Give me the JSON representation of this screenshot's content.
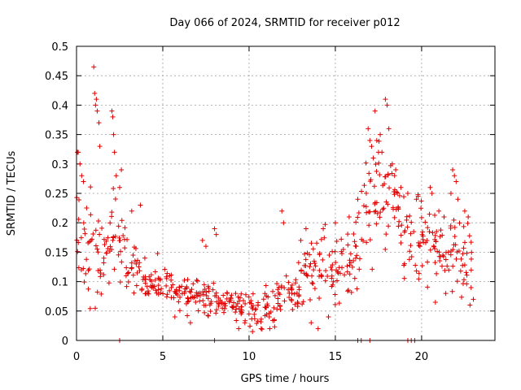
{
  "chart_data": {
    "type": "scatter",
    "title": "Day 066 of 2024, SRMTID for receiver p012",
    "xlabel": "GPS time / hours",
    "ylabel": "SRMTID / TECUs",
    "xlim": [
      0,
      24.25
    ],
    "ylim": [
      0,
      0.5
    ],
    "xticks": [
      0,
      5,
      10,
      15,
      20
    ],
    "xtick_labels": [
      "0",
      "5",
      "10",
      "15",
      "20"
    ],
    "yticks": [
      0,
      0.05,
      0.1,
      0.15,
      0.2,
      0.25,
      0.3,
      0.35,
      0.4,
      0.45,
      0.5
    ],
    "ytick_labels": [
      "0",
      "0.05",
      "0.1",
      "0.15",
      "0.2",
      "0.25",
      "0.3",
      "0.35",
      "0.4",
      "0.45",
      "0.5"
    ],
    "grid": true,
    "marker": "+",
    "series_color": "#e00000",
    "points_per_segment": 14,
    "series": [
      {
        "name": "SRMTID p012",
        "profile": [
          [
            0.0,
            0.17,
            0.05
          ],
          [
            0.5,
            0.17,
            0.05
          ],
          [
            1.0,
            0.18,
            0.06
          ],
          [
            1.5,
            0.14,
            0.04
          ],
          [
            2.0,
            0.16,
            0.05
          ],
          [
            2.5,
            0.15,
            0.05
          ],
          [
            3.0,
            0.14,
            0.04
          ],
          [
            3.5,
            0.11,
            0.03
          ],
          [
            4.0,
            0.1,
            0.025
          ],
          [
            4.5,
            0.1,
            0.025
          ],
          [
            5.0,
            0.09,
            0.025
          ],
          [
            5.5,
            0.09,
            0.025
          ],
          [
            6.0,
            0.08,
            0.02
          ],
          [
            6.5,
            0.08,
            0.02
          ],
          [
            7.0,
            0.08,
            0.02
          ],
          [
            7.5,
            0.075,
            0.02
          ],
          [
            8.0,
            0.07,
            0.02
          ],
          [
            8.5,
            0.065,
            0.02
          ],
          [
            9.0,
            0.06,
            0.018
          ],
          [
            9.5,
            0.06,
            0.018
          ],
          [
            10.0,
            0.055,
            0.018
          ],
          [
            10.5,
            0.055,
            0.018
          ],
          [
            11.0,
            0.055,
            0.02
          ],
          [
            11.5,
            0.06,
            0.02
          ],
          [
            12.0,
            0.07,
            0.02
          ],
          [
            12.5,
            0.085,
            0.025
          ],
          [
            13.0,
            0.1,
            0.03
          ],
          [
            13.5,
            0.13,
            0.035
          ],
          [
            14.0,
            0.13,
            0.04
          ],
          [
            14.5,
            0.12,
            0.04
          ],
          [
            15.0,
            0.12,
            0.04
          ],
          [
            15.5,
            0.13,
            0.04
          ],
          [
            16.0,
            0.15,
            0.04
          ],
          [
            16.5,
            0.18,
            0.05
          ],
          [
            17.0,
            0.23,
            0.06
          ],
          [
            17.5,
            0.25,
            0.06
          ],
          [
            18.0,
            0.24,
            0.06
          ],
          [
            18.5,
            0.22,
            0.06
          ],
          [
            19.0,
            0.18,
            0.05
          ],
          [
            19.5,
            0.18,
            0.05
          ],
          [
            20.0,
            0.17,
            0.05
          ],
          [
            20.5,
            0.16,
            0.04
          ],
          [
            21.0,
            0.15,
            0.04
          ],
          [
            21.5,
            0.15,
            0.04
          ],
          [
            22.0,
            0.17,
            0.05
          ],
          [
            22.5,
            0.15,
            0.04
          ],
          [
            22.9,
            0.13,
            0.04
          ]
        ],
        "extra_points": [
          [
            0.05,
            0.32
          ],
          [
            0.1,
            0.32
          ],
          [
            0.2,
            0.3
          ],
          [
            0.3,
            0.28
          ],
          [
            0.4,
            0.27
          ],
          [
            1.0,
            0.465
          ],
          [
            1.05,
            0.42
          ],
          [
            1.1,
            0.4
          ],
          [
            1.15,
            0.41
          ],
          [
            1.2,
            0.39
          ],
          [
            1.3,
            0.37
          ],
          [
            1.35,
            0.33
          ],
          [
            2.05,
            0.39
          ],
          [
            2.1,
            0.38
          ],
          [
            2.15,
            0.35
          ],
          [
            2.2,
            0.32
          ],
          [
            2.3,
            0.28
          ],
          [
            2.6,
            0.29
          ],
          [
            2.5,
            0.26
          ],
          [
            3.2,
            0.22
          ],
          [
            3.7,
            0.23
          ],
          [
            7.3,
            0.17
          ],
          [
            7.5,
            0.16
          ],
          [
            8.0,
            0.19
          ],
          [
            8.1,
            0.18
          ],
          [
            11.9,
            0.22
          ],
          [
            12.0,
            0.2
          ],
          [
            13.0,
            0.17
          ],
          [
            13.3,
            0.19
          ],
          [
            14.3,
            0.19
          ],
          [
            15.0,
            0.2
          ],
          [
            15.8,
            0.21
          ],
          [
            16.3,
            0.24
          ],
          [
            16.9,
            0.36
          ],
          [
            17.0,
            0.34
          ],
          [
            17.1,
            0.33
          ],
          [
            17.2,
            0.31
          ],
          [
            17.3,
            0.39
          ],
          [
            17.4,
            0.34
          ],
          [
            17.5,
            0.32
          ],
          [
            17.6,
            0.35
          ],
          [
            17.7,
            0.32
          ],
          [
            17.9,
            0.41
          ],
          [
            18.0,
            0.4
          ],
          [
            18.1,
            0.36
          ],
          [
            18.3,
            0.3
          ],
          [
            18.5,
            0.29
          ],
          [
            18.8,
            0.26
          ],
          [
            19.2,
            0.25
          ],
          [
            19.7,
            0.24
          ],
          [
            20.5,
            0.26
          ],
          [
            20.6,
            0.25
          ],
          [
            21.0,
            0.22
          ],
          [
            21.3,
            0.21
          ],
          [
            21.7,
            0.25
          ],
          [
            21.8,
            0.29
          ],
          [
            21.9,
            0.28
          ],
          [
            22.0,
            0.27
          ],
          [
            22.1,
            0.24
          ],
          [
            22.5,
            0.22
          ],
          [
            22.7,
            0.21
          ],
          [
            23.0,
            0.07
          ],
          [
            5.7,
            0.04
          ],
          [
            6.6,
            0.03
          ],
          [
            9.4,
            0.02
          ],
          [
            10.2,
            0.015
          ],
          [
            10.7,
            0.02
          ],
          [
            11.2,
            0.02
          ],
          [
            13.6,
            0.03
          ],
          [
            14.0,
            0.02
          ],
          [
            14.6,
            0.04
          ],
          [
            20.8,
            0.065
          ],
          [
            21.4,
            0.08
          ]
        ],
        "zero_points": [
          2.5,
          8.0,
          16.3,
          16.5,
          17.0,
          19.2,
          19.4,
          19.6
        ]
      }
    ]
  }
}
